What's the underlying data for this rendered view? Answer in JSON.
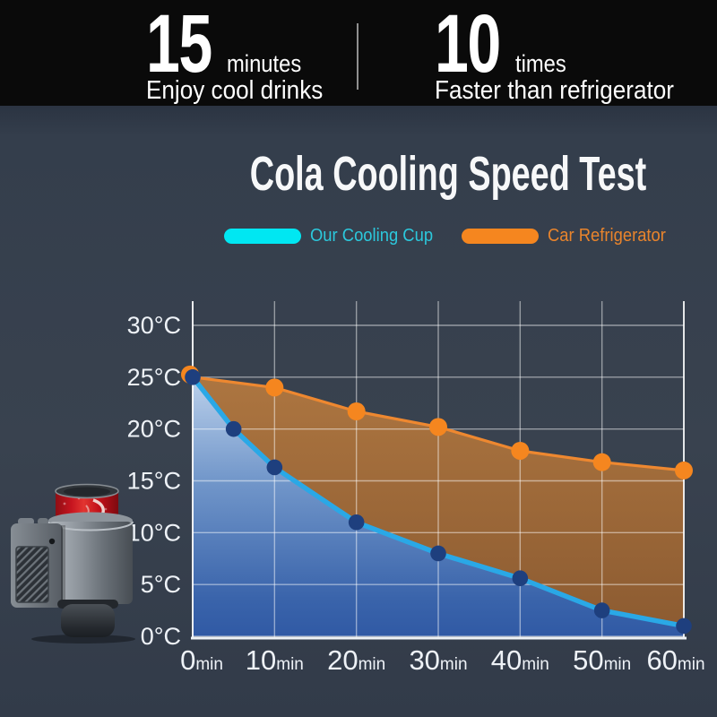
{
  "banner": {
    "stats": [
      {
        "value": "15",
        "unit": "minutes",
        "caption": "Enjoy cool drinks"
      },
      {
        "value": "10",
        "unit": "times",
        "caption": "Faster than refrigerator"
      }
    ]
  },
  "section": {
    "title": "Cola Cooling Speed Test"
  },
  "legend": [
    {
      "label": "Our Cooling Cup",
      "swatch_color": "#00e7f2",
      "text_color": "#2cc8dc"
    },
    {
      "label": "Car Refrigerator",
      "swatch_color": "#f5861f",
      "text_color": "#e9842c"
    }
  ],
  "chart_data": {
    "type": "line",
    "title": "Cola Cooling Speed Test",
    "xlabel": "",
    "ylabel": "",
    "x_unit": "min",
    "y_unit": "°C",
    "xlim": [
      0,
      60
    ],
    "ylim": [
      0,
      30
    ],
    "x_ticks": [
      0,
      10,
      20,
      30,
      40,
      50,
      60
    ],
    "y_ticks": [
      0,
      5,
      10,
      15,
      20,
      25,
      30
    ],
    "grid": true,
    "legend_position": "top",
    "series": [
      {
        "name": "Our Cooling Cup",
        "line_color": "#2aa8e6",
        "marker_color": "#1e3f7e",
        "area": "blue-gradient",
        "x": [
          0,
          5,
          10,
          20,
          30,
          40,
          50,
          60
        ],
        "y": [
          25,
          20,
          16.3,
          11,
          8,
          5.6,
          2.5,
          1
        ]
      },
      {
        "name": "Car Refrigerator",
        "line_color": "#ee8830",
        "marker_color": "#f5861f",
        "area": "brown-between-lines",
        "x": [
          0,
          10,
          20,
          30,
          40,
          50,
          60
        ],
        "y": [
          25,
          24,
          21.7,
          20.2,
          17.9,
          16.8,
          16
        ]
      }
    ]
  }
}
